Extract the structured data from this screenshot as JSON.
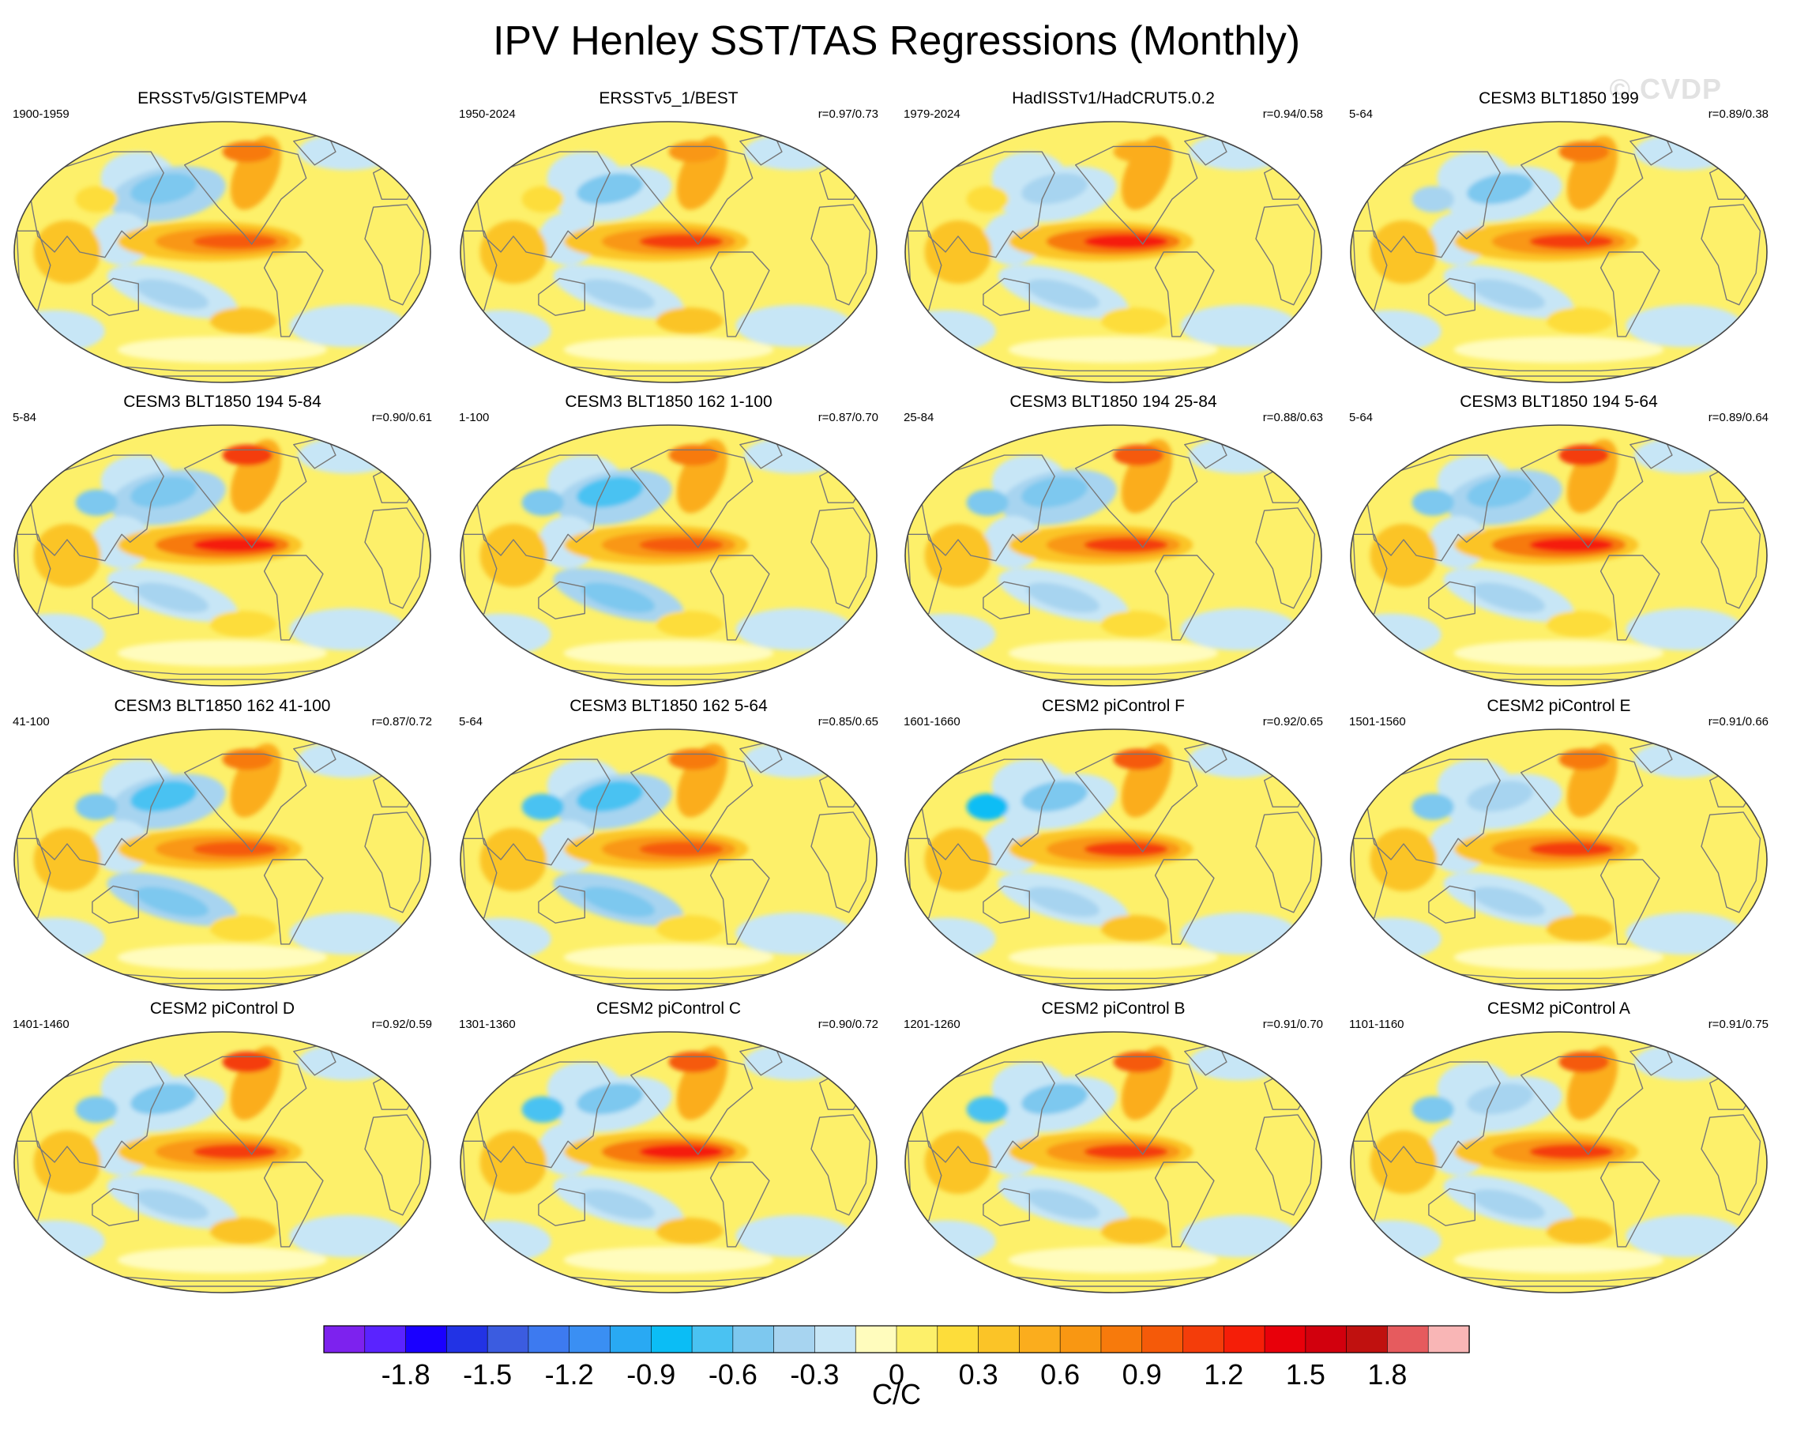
{
  "title": "IPV Henley SST/TAS Regressions (Monthly)",
  "watermark": "© CVDP",
  "colors": {
    "scale": [
      "#7d22ee",
      "#5a23ff",
      "#1a00ff",
      "#2233e5",
      "#3b5ce0",
      "#3d7af0",
      "#3a8ff3",
      "#29a9f3",
      "#0bbdf5",
      "#4ac2f2",
      "#7dc8ef",
      "#a7d4f0",
      "#c7e6f6",
      "#fffcbd",
      "#fdf06a",
      "#fddd3a",
      "#fbc427",
      "#fbad1d",
      "#f99712",
      "#f77a0c",
      "#f55a09",
      "#f43d0a",
      "#f51e08",
      "#e8000a",
      "#d2000d",
      "#c0110f",
      "#e65b5e",
      "#f9b6b6"
    ],
    "coast": "#777777",
    "border": "#444444"
  },
  "chart_data": {
    "type": "heatmap",
    "projection": "robinson-like global map, Pacific-centered",
    "title": "IPV Henley SST/TAS Regressions (Monthly)",
    "colorbar": {
      "units": "C/C",
      "ticks": [
        -1.8,
        -1.5,
        -1.2,
        -0.9,
        -0.6,
        -0.3,
        0,
        0.3,
        0.6,
        0.9,
        1.2,
        1.5,
        1.8
      ],
      "tick_labels": [
        "-1.8",
        "-1.5",
        "-1.2",
        "-0.9",
        "-0.6",
        "-0.3",
        "0",
        "0.3",
        "0.6",
        "0.9",
        "1.2",
        "1.5",
        "1.8"
      ],
      "levels": [
        -2.1,
        -1.95,
        -1.8,
        -1.65,
        -1.5,
        -1.35,
        -1.2,
        -1.05,
        -0.9,
        -0.75,
        -0.6,
        -0.45,
        -0.3,
        -0.15,
        0,
        0.15,
        0.3,
        0.45,
        0.6,
        0.75,
        0.9,
        1.05,
        1.2,
        1.35,
        1.5,
        1.65,
        1.8,
        1.95,
        2.1
      ],
      "n_colors": 28
    },
    "panels": [
      {
        "title": "ERSSTv5/GISTEMPv4",
        "period": "1900-1959",
        "corr": "",
        "eq": 0.95,
        "npac": -0.55,
        "spac": -0.4,
        "alaska": 0.75,
        "asia": 0.2,
        "south": 0.3,
        "ind": 0.35
      },
      {
        "title": "ERSSTv5_1/BEST",
        "period": "1950-2024",
        "corr": "r=0.97/0.73",
        "eq": 1.05,
        "npac": -0.5,
        "spac": -0.45,
        "alaska": 0.7,
        "asia": 0.2,
        "south": 0.35,
        "ind": 0.3
      },
      {
        "title": "HadISSTv1/HadCRUT5.0.2",
        "period": "1979-2024",
        "corr": "r=0.94/0.58",
        "eq": 1.25,
        "npac": -0.4,
        "spac": -0.35,
        "alaska": 0.45,
        "asia": 0.15,
        "south": 0.2,
        "ind": 0.3
      },
      {
        "title": "CESM3 BLT1850 199",
        "period": "5-64",
        "corr": "r=0.89/0.38",
        "eq": 1.05,
        "npac": -0.5,
        "spac": -0.4,
        "alaska": 0.8,
        "asia": -0.4,
        "south": 0.2,
        "ind": 0.3
      },
      {
        "title": "CESM3 BLT1850 194 5-84",
        "period": "5-84",
        "corr": "r=0.90/0.61",
        "eq": 1.2,
        "npac": -0.55,
        "spac": -0.45,
        "alaska": 1.1,
        "asia": -0.5,
        "south": 0.25,
        "ind": 0.4
      },
      {
        "title": "CESM3 BLT1850 162 1-100",
        "period": "1-100",
        "corr": "r=0.87/0.70",
        "eq": 1.0,
        "npac": -0.7,
        "spac": -0.6,
        "alaska": 0.85,
        "asia": -0.6,
        "south": 0.25,
        "ind": 0.35
      },
      {
        "title": "CESM3 BLT1850 194 25-84",
        "period": "25-84",
        "corr": "r=0.88/0.63",
        "eq": 1.15,
        "npac": -0.55,
        "spac": -0.45,
        "alaska": 1.0,
        "asia": -0.55,
        "south": 0.25,
        "ind": 0.4
      },
      {
        "title": "CESM3 BLT1850 194 5-64",
        "period": "5-64",
        "corr": "r=0.89/0.64",
        "eq": 1.2,
        "npac": -0.55,
        "spac": -0.45,
        "alaska": 1.1,
        "asia": -0.5,
        "south": 0.25,
        "ind": 0.4
      },
      {
        "title": "CESM3 BLT1850 162 41-100",
        "period": "41-100",
        "corr": "r=0.87/0.72",
        "eq": 1.0,
        "npac": -0.65,
        "spac": -0.6,
        "alaska": 0.85,
        "asia": -0.6,
        "south": 0.25,
        "ind": 0.35
      },
      {
        "title": "CESM3 BLT1850 162 5-64",
        "period": "5-64",
        "corr": "r=0.85/0.65",
        "eq": 0.95,
        "npac": -0.7,
        "spac": -0.55,
        "alaska": 0.8,
        "asia": -0.7,
        "south": 0.2,
        "ind": 0.35
      },
      {
        "title": "CESM2 piControl F",
        "period": "1601-1660",
        "corr": "r=0.92/0.65",
        "eq": 1.15,
        "npac": -0.5,
        "spac": -0.4,
        "alaska": 0.9,
        "asia": -0.8,
        "south": 0.35,
        "ind": 0.35
      },
      {
        "title": "CESM2 piControl E",
        "period": "1501-1560",
        "corr": "r=0.91/0.66",
        "eq": 1.1,
        "npac": -0.45,
        "spac": -0.4,
        "alaska": 0.85,
        "asia": -0.6,
        "south": 0.3,
        "ind": 0.35
      },
      {
        "title": "CESM2 piControl D",
        "period": "1401-1460",
        "corr": "r=0.92/0.59",
        "eq": 1.1,
        "npac": -0.5,
        "spac": -0.4,
        "alaska": 1.1,
        "asia": -0.6,
        "south": 0.35,
        "ind": 0.35
      },
      {
        "title": "CESM2 piControl C",
        "period": "1301-1360",
        "corr": "r=0.90/0.72",
        "eq": 1.2,
        "npac": -0.5,
        "spac": -0.45,
        "alaska": 0.9,
        "asia": -0.7,
        "south": 0.3,
        "ind": 0.35
      },
      {
        "title": "CESM2 piControl B",
        "period": "1201-1260",
        "corr": "r=0.91/0.70",
        "eq": 1.15,
        "npac": -0.5,
        "spac": -0.45,
        "alaska": 0.9,
        "asia": -0.7,
        "south": 0.3,
        "ind": 0.35
      },
      {
        "title": "CESM2 piControl A",
        "period": "1101-1160",
        "corr": "r=0.91/0.75",
        "eq": 1.05,
        "npac": -0.45,
        "spac": -0.4,
        "alaska": 0.95,
        "asia": -0.5,
        "south": 0.3,
        "ind": 0.35
      }
    ]
  }
}
